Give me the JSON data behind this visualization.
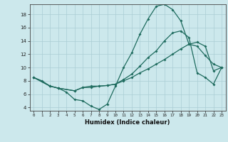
{
  "title": "",
  "xlabel": "Humidex (Indice chaleur)",
  "bg_color": "#cce8ec",
  "line_color": "#1e6b5e",
  "grid_color": "#aacdd4",
  "xlim": [
    -0.5,
    23.5
  ],
  "ylim": [
    3.5,
    19.5
  ],
  "xticks": [
    0,
    1,
    2,
    3,
    4,
    5,
    6,
    7,
    8,
    9,
    10,
    11,
    12,
    13,
    14,
    15,
    16,
    17,
    18,
    19,
    20,
    21,
    22,
    23
  ],
  "yticks": [
    4,
    6,
    8,
    10,
    12,
    14,
    16,
    18
  ],
  "line1_x": [
    0,
    1,
    2,
    3,
    4,
    5,
    6,
    7,
    8,
    9,
    10,
    11,
    12,
    13,
    14,
    15,
    16,
    17,
    18,
    19,
    20,
    21,
    22,
    23
  ],
  "line1_y": [
    8.5,
    8.0,
    7.2,
    6.9,
    6.3,
    5.2,
    5.0,
    4.2,
    3.7,
    4.5,
    7.2,
    10.0,
    12.2,
    15.0,
    17.3,
    19.2,
    19.5,
    18.7,
    17.0,
    13.5,
    13.2,
    11.8,
    10.5,
    10.0
  ],
  "line2_x": [
    0,
    2,
    3,
    5,
    6,
    7,
    8,
    9,
    10,
    11,
    12,
    13,
    14,
    15,
    16,
    17,
    18,
    19,
    20,
    21,
    22,
    23
  ],
  "line2_y": [
    8.5,
    7.2,
    6.9,
    6.5,
    7.0,
    7.2,
    7.2,
    7.3,
    7.5,
    8.0,
    8.5,
    9.2,
    9.8,
    10.5,
    11.2,
    12.0,
    12.8,
    13.5,
    13.8,
    13.2,
    9.5,
    10.0
  ],
  "line3_x": [
    0,
    2,
    3,
    5,
    6,
    7,
    8,
    9,
    10,
    11,
    12,
    13,
    14,
    15,
    16,
    17,
    18,
    19,
    20,
    21,
    22,
    23
  ],
  "line3_y": [
    8.5,
    7.2,
    6.9,
    6.5,
    7.0,
    7.0,
    7.2,
    7.3,
    7.5,
    8.2,
    9.0,
    10.2,
    11.5,
    12.5,
    14.0,
    15.2,
    15.5,
    14.5,
    9.2,
    8.5,
    7.5,
    10.0
  ]
}
